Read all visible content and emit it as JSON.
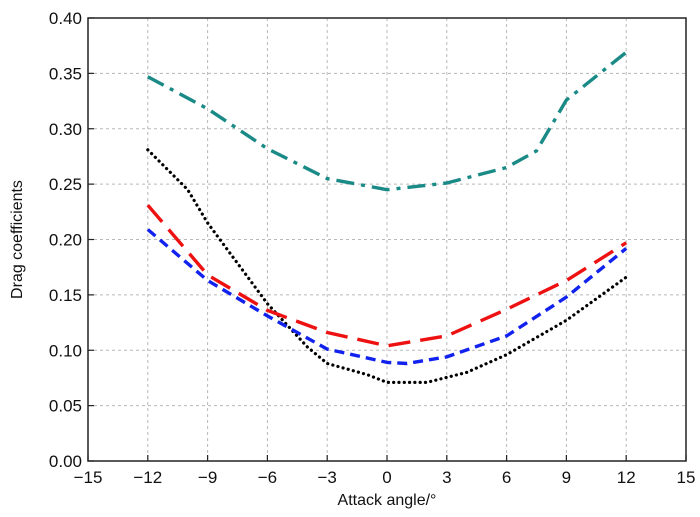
{
  "chart_data": {
    "type": "line",
    "title": "",
    "xlabel": "Attack angle/°",
    "ylabel": "Drag coefficients",
    "xlim": [
      -15,
      15
    ],
    "ylim": [
      0,
      0.4
    ],
    "xticks": [
      -15,
      -12,
      -9,
      -6,
      -3,
      0,
      3,
      6,
      9,
      12,
      15
    ],
    "xtick_labels": [
      "−15",
      "−12",
      "−9",
      "−6",
      "−3",
      "0",
      "3",
      "6",
      "9",
      "12",
      "15"
    ],
    "yticks": [
      0,
      0.05,
      0.1,
      0.15,
      0.2,
      0.25,
      0.3,
      0.35,
      0.4
    ],
    "ytick_labels": [
      "0.00",
      "0.05",
      "0.10",
      "0.15",
      "0.20",
      "0.25",
      "0.30",
      "0.35",
      "0.40"
    ],
    "grid": true,
    "legend": "none",
    "series": [
      {
        "color": "#1a8a87",
        "style": "dash-dot",
        "points": [
          [
            -12,
            0.347
          ],
          [
            -9,
            0.318
          ],
          [
            -6,
            0.282
          ],
          [
            -3,
            0.255
          ],
          [
            0,
            0.245
          ],
          [
            3,
            0.251
          ],
          [
            6,
            0.265
          ],
          [
            7.5,
            0.28
          ],
          [
            9,
            0.326
          ],
          [
            12,
            0.369
          ]
        ]
      },
      {
        "color": "#000000",
        "style": "dotted",
        "points": [
          [
            -12,
            0.281
          ],
          [
            -10,
            0.245
          ],
          [
            -9,
            0.215
          ],
          [
            -6,
            0.142
          ],
          [
            -4,
            0.103
          ],
          [
            -3,
            0.088
          ],
          [
            -1,
            0.078
          ],
          [
            0,
            0.071
          ],
          [
            2,
            0.071
          ],
          [
            4,
            0.08
          ],
          [
            6,
            0.096
          ],
          [
            9,
            0.127
          ],
          [
            12,
            0.166
          ]
        ]
      },
      {
        "color": "#ee1111",
        "style": "long-dash",
        "points": [
          [
            -12,
            0.231
          ],
          [
            -9,
            0.168
          ],
          [
            -6,
            0.136
          ],
          [
            -3,
            0.116
          ],
          [
            0,
            0.104
          ],
          [
            3,
            0.113
          ],
          [
            6,
            0.137
          ],
          [
            9,
            0.163
          ],
          [
            12,
            0.197
          ]
        ]
      },
      {
        "color": "#1122ee",
        "style": "short-dash",
        "points": [
          [
            -12,
            0.209
          ],
          [
            -9,
            0.163
          ],
          [
            -6,
            0.131
          ],
          [
            -3,
            0.101
          ],
          [
            0,
            0.089
          ],
          [
            1,
            0.088
          ],
          [
            3,
            0.094
          ],
          [
            6,
            0.113
          ],
          [
            9,
            0.148
          ],
          [
            12,
            0.192
          ]
        ]
      }
    ]
  }
}
